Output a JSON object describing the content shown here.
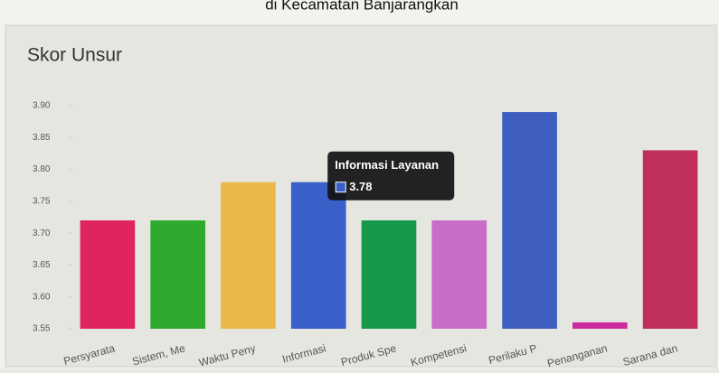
{
  "page_header": "di Kecamatan Banjarangkan",
  "chart_data": {
    "type": "bar",
    "title": "Skor Unsur",
    "categories": [
      "Persyarata",
      "Sistem, Me",
      "Waktu Peny",
      "Informasi",
      "Produk Spe",
      "Kompetensi",
      "Perilaku P",
      "Penanganan",
      "Sarana dan"
    ],
    "values": [
      3.72,
      3.72,
      3.78,
      3.78,
      3.72,
      3.72,
      3.89,
      3.56,
      3.83
    ],
    "colors": [
      "#e0245e",
      "#2eaa2e",
      "#e8b84a",
      "#3a5fc8",
      "#16994a",
      "#c86cc8",
      "#3e5fbf",
      "#cc2aa0",
      "#c0305a"
    ],
    "ylim": [
      3.55,
      3.92
    ],
    "yticks": [
      3.55,
      {
        "value": 3.6,
        "label": "3.60"
      },
      3.65,
      {
        "value": 3.7,
        "label": "3.70"
      },
      3.75,
      {
        "value": 3.8,
        "label": "3.80"
      },
      3.85,
      {
        "value": 3.9,
        "label": "3.90"
      }
    ],
    "tooltip_title": "Informasi Layanan",
    "tooltip_index": 3
  }
}
